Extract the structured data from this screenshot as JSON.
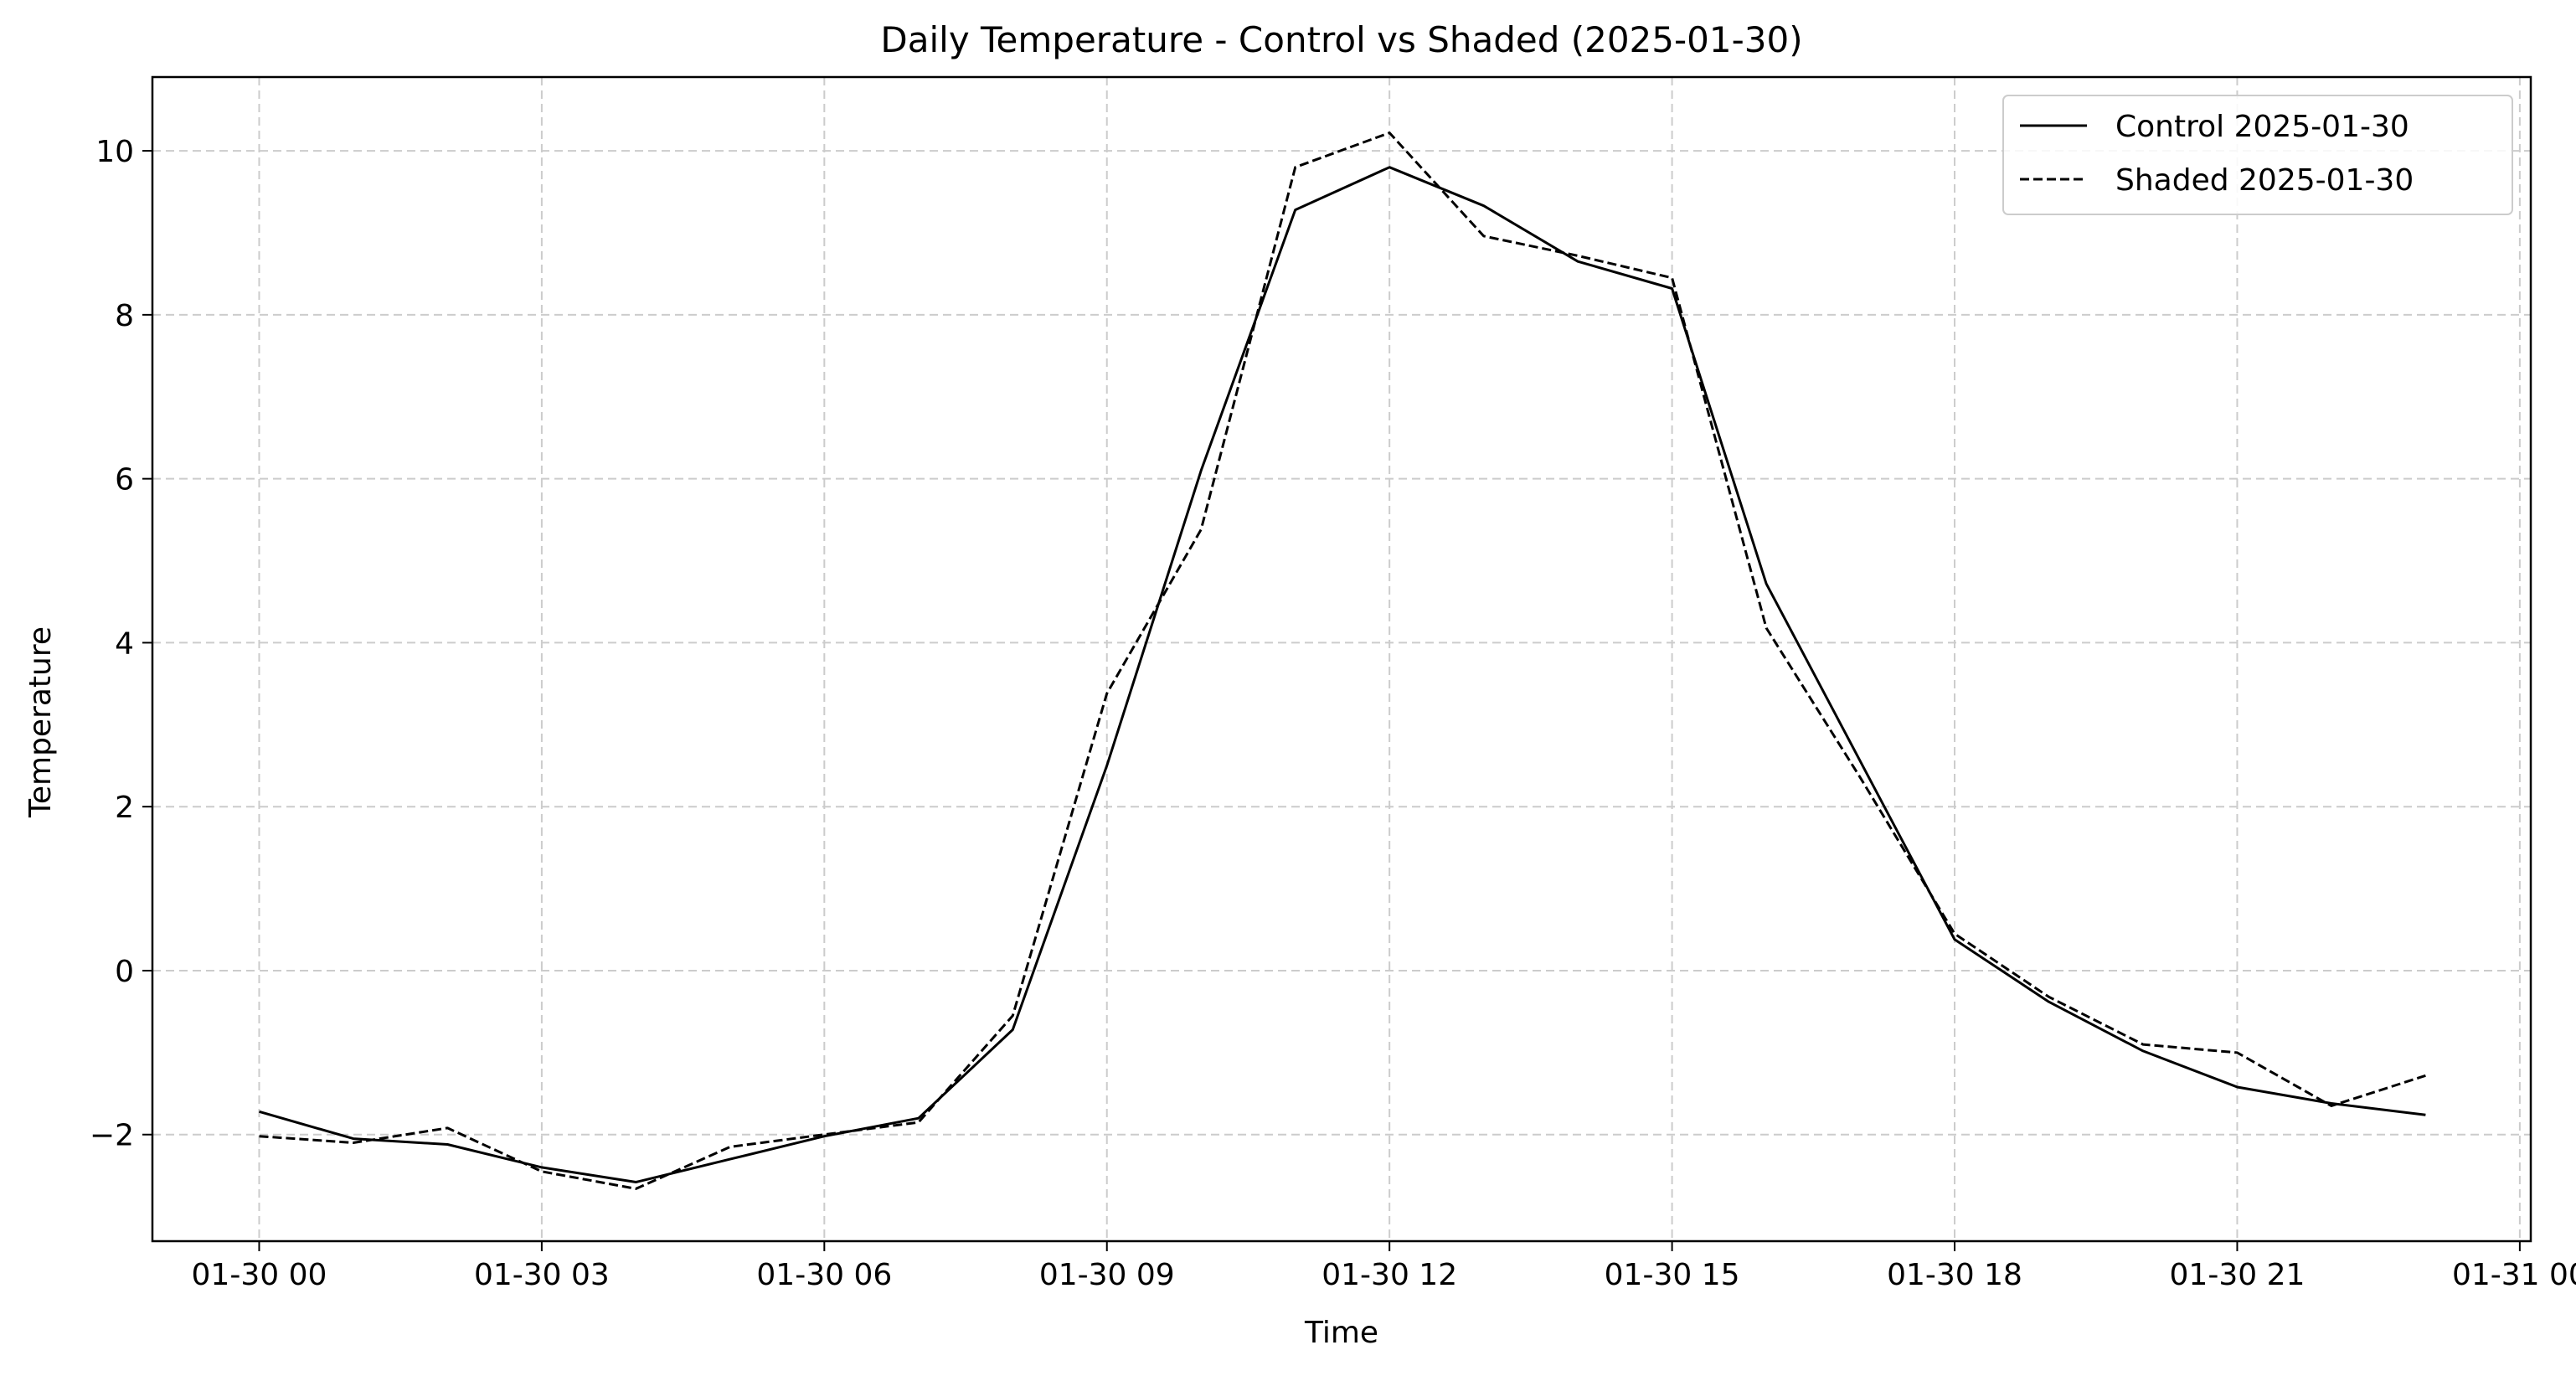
{
  "chart_data": {
    "type": "line",
    "title": "Daily Temperature - Control vs Shaded (2025-01-30)",
    "xlabel": "Time",
    "ylabel": "Temperature",
    "x": [
      "2025-01-30 00:00",
      "2025-01-30 01:00",
      "2025-01-30 02:00",
      "2025-01-30 03:00",
      "2025-01-30 04:00",
      "2025-01-30 05:00",
      "2025-01-30 06:00",
      "2025-01-30 07:00",
      "2025-01-30 08:00",
      "2025-01-30 09:00",
      "2025-01-30 10:00",
      "2025-01-30 11:00",
      "2025-01-30 12:00",
      "2025-01-30 13:00",
      "2025-01-30 14:00",
      "2025-01-30 15:00",
      "2025-01-30 16:00",
      "2025-01-30 17:00",
      "2025-01-30 18:00",
      "2025-01-30 19:00",
      "2025-01-30 20:00",
      "2025-01-30 21:00",
      "2025-01-30 22:00",
      "2025-01-30 23:00"
    ],
    "xlim": [
      "2025-01-29 22:52",
      "2025-01-31 00:07"
    ],
    "ylim": [
      -3.3,
      10.9
    ],
    "x_ticks": [
      {
        "value": "2025-01-30 00:00",
        "label": "01-30 00"
      },
      {
        "value": "2025-01-30 03:00",
        "label": "01-30 03"
      },
      {
        "value": "2025-01-30 06:00",
        "label": "01-30 06"
      },
      {
        "value": "2025-01-30 09:00",
        "label": "01-30 09"
      },
      {
        "value": "2025-01-30 12:00",
        "label": "01-30 12"
      },
      {
        "value": "2025-01-30 15:00",
        "label": "01-30 15"
      },
      {
        "value": "2025-01-30 18:00",
        "label": "01-30 18"
      },
      {
        "value": "2025-01-30 21:00",
        "label": "01-30 21"
      },
      {
        "value": "2025-01-31 00:00",
        "label": "01-31 00"
      }
    ],
    "y_ticks": [
      {
        "value": -2,
        "label": "−2"
      },
      {
        "value": 0,
        "label": "0"
      },
      {
        "value": 2,
        "label": "2"
      },
      {
        "value": 4,
        "label": "4"
      },
      {
        "value": 6,
        "label": "6"
      },
      {
        "value": 8,
        "label": "8"
      },
      {
        "value": 10,
        "label": "10"
      }
    ],
    "grid": true,
    "grid_color": "#cccccc",
    "legend_position": "top-right",
    "series": [
      {
        "name": "Control 2025-01-30",
        "style": "solid",
        "color": "#000000",
        "values": [
          -1.72,
          -2.05,
          -2.12,
          -2.4,
          -2.58,
          -2.3,
          -2.02,
          -1.8,
          -0.72,
          2.5,
          6.1,
          9.28,
          9.8,
          9.33,
          8.65,
          8.32,
          4.72,
          2.55,
          0.38,
          -0.38,
          -0.98,
          -1.42,
          -1.62,
          -1.76
        ]
      },
      {
        "name": "Shaded 2025-01-30",
        "style": "dashed",
        "color": "#000000",
        "values": [
          -2.02,
          -2.1,
          -1.92,
          -2.45,
          -2.66,
          -2.15,
          -2.0,
          -1.85,
          -0.55,
          3.38,
          5.38,
          9.8,
          10.22,
          8.96,
          8.72,
          8.45,
          4.18,
          2.35,
          0.45,
          -0.32,
          -0.9,
          -1.0,
          -1.65,
          -1.28
        ]
      }
    ]
  }
}
